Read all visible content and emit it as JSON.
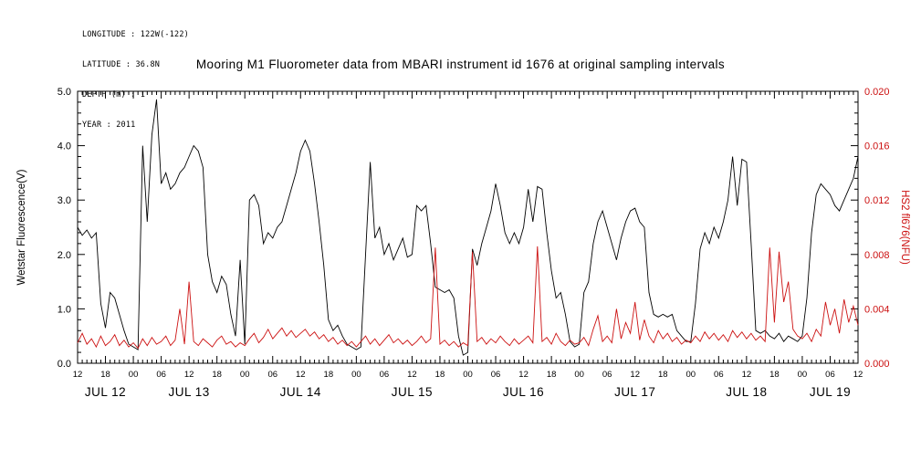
{
  "header": {
    "longitude": "LONGITUDE : 122W(-122)",
    "latitude": "LATITUDE : 36.8N",
    "depth": "DEPTH (m) : 1",
    "year": "YEAR : 2011"
  },
  "title": "Mooring M1 Fluorometer data from MBARI instrument id 1676 at original sampling intervals",
  "colors": {
    "axis": "#000000",
    "wetstar_series": "#000000",
    "hs2_series": "#cc1111"
  },
  "chart_data": {
    "type": "line",
    "title": "Mooring M1 Fluorometer data from MBARI instrument id 1676 at original sampling intervals",
    "x_unit": "hours since 2011 JUL 12 12:00",
    "x_range": {
      "start": 0,
      "step": 1,
      "count": 169,
      "min": 0,
      "max": 168
    },
    "left_axis": {
      "label": "Wetstar Fluorescence(V)",
      "min": 0.0,
      "max": 5.0,
      "tick_step": 1.0,
      "minor_step": 0.2,
      "ticks": [
        "0.0",
        "1.0",
        "2.0",
        "3.0",
        "4.0",
        "5.0"
      ],
      "color": "#000000"
    },
    "right_axis": {
      "label": "HS2 fl676(NFU)",
      "min": 0.0,
      "max": 0.02,
      "tick_step": 0.004,
      "minor_step": 0.001,
      "ticks": [
        "0.000",
        "0.004",
        "0.008",
        "0.012",
        "0.016",
        "0.020"
      ],
      "color": "#cc1111"
    },
    "x_axis": {
      "hour_tick_interval": 6,
      "minor_tick_interval": 1,
      "hour_labels": [
        "12",
        "18",
        "00",
        "06",
        "12",
        "18",
        "00",
        "06",
        "12",
        "18",
        "00",
        "06",
        "12",
        "18",
        "00",
        "06",
        "12",
        "18",
        "00",
        "06",
        "12",
        "18",
        "00",
        "06",
        "12",
        "18",
        "00",
        "06",
        "12"
      ],
      "day_labels": [
        "JUL 12",
        "JUL 13",
        "JUL 14",
        "JUL 15",
        "JUL 16",
        "JUL 17",
        "JUL 18",
        "JUL 19"
      ],
      "day_label_hours": [
        6,
        24,
        48,
        72,
        96,
        120,
        144,
        162
      ]
    },
    "grid": false,
    "legend": "none",
    "series": [
      {
        "name": "Wetstar Fluorescence(V)",
        "axis": "left",
        "color": "#000000",
        "values": [
          2.5,
          2.35,
          2.45,
          2.3,
          2.4,
          1.1,
          0.65,
          1.3,
          1.2,
          0.9,
          0.6,
          0.35,
          0.3,
          0.25,
          4.0,
          2.6,
          4.2,
          4.85,
          3.3,
          3.5,
          3.2,
          3.3,
          3.5,
          3.6,
          3.8,
          4.0,
          3.9,
          3.6,
          2.0,
          1.5,
          1.3,
          1.6,
          1.45,
          0.9,
          0.5,
          1.9,
          0.35,
          3.0,
          3.1,
          2.9,
          2.2,
          2.4,
          2.3,
          2.5,
          2.6,
          2.9,
          3.2,
          3.5,
          3.9,
          4.1,
          3.9,
          3.3,
          2.6,
          1.8,
          0.8,
          0.6,
          0.7,
          0.5,
          0.35,
          0.3,
          0.25,
          0.3,
          2.0,
          3.7,
          2.3,
          2.5,
          2.0,
          2.2,
          1.9,
          2.1,
          2.3,
          1.95,
          2.0,
          2.9,
          2.8,
          2.9,
          2.2,
          1.4,
          1.35,
          1.3,
          1.35,
          1.2,
          0.5,
          0.15,
          0.2,
          2.1,
          1.8,
          2.2,
          2.5,
          2.8,
          3.3,
          2.9,
          2.4,
          2.2,
          2.4,
          2.2,
          2.5,
          3.2,
          2.6,
          3.25,
          3.2,
          2.4,
          1.7,
          1.2,
          1.3,
          0.9,
          0.4,
          0.3,
          0.35,
          1.3,
          1.5,
          2.2,
          2.6,
          2.8,
          2.5,
          2.2,
          1.9,
          2.3,
          2.6,
          2.8,
          2.85,
          2.6,
          2.5,
          1.3,
          0.9,
          0.85,
          0.9,
          0.85,
          0.9,
          0.6,
          0.5,
          0.4,
          0.4,
          1.1,
          2.1,
          2.4,
          2.2,
          2.5,
          2.3,
          2.6,
          3.0,
          3.8,
          2.9,
          3.75,
          3.7,
          2.2,
          0.6,
          0.55,
          0.6,
          0.5,
          0.45,
          0.55,
          0.4,
          0.5,
          0.45,
          0.4,
          0.5,
          1.2,
          2.4,
          3.1,
          3.3,
          3.2,
          3.1,
          2.9,
          2.8,
          3.0,
          3.2,
          3.4,
          3.8
        ]
      },
      {
        "name": "HS2 fl676(NFU)",
        "axis": "right",
        "color": "#cc1111",
        "values": [
          0.0015,
          0.0022,
          0.0014,
          0.0018,
          0.0012,
          0.002,
          0.0013,
          0.0016,
          0.0021,
          0.0013,
          0.0017,
          0.0012,
          0.0015,
          0.0011,
          0.0018,
          0.0013,
          0.0019,
          0.0014,
          0.0016,
          0.002,
          0.0013,
          0.0017,
          0.004,
          0.0014,
          0.006,
          0.0016,
          0.0013,
          0.0018,
          0.0015,
          0.0012,
          0.0017,
          0.002,
          0.0014,
          0.0016,
          0.0012,
          0.0015,
          0.0013,
          0.0018,
          0.0022,
          0.0015,
          0.0019,
          0.0025,
          0.0018,
          0.0022,
          0.0026,
          0.002,
          0.0024,
          0.0019,
          0.0022,
          0.0025,
          0.002,
          0.0023,
          0.0018,
          0.0021,
          0.0016,
          0.0019,
          0.0014,
          0.0017,
          0.0013,
          0.0016,
          0.0012,
          0.0016,
          0.002,
          0.0014,
          0.0018,
          0.0013,
          0.0017,
          0.0021,
          0.0015,
          0.0018,
          0.0014,
          0.0017,
          0.0013,
          0.0016,
          0.002,
          0.0015,
          0.0018,
          0.0085,
          0.0014,
          0.0017,
          0.0013,
          0.0016,
          0.0012,
          0.0015,
          0.0013,
          0.0082,
          0.0016,
          0.0019,
          0.0014,
          0.0018,
          0.0015,
          0.002,
          0.0016,
          0.0013,
          0.0018,
          0.0014,
          0.0017,
          0.002,
          0.0015,
          0.0086,
          0.0016,
          0.0019,
          0.0014,
          0.0022,
          0.0016,
          0.0013,
          0.0017,
          0.0014,
          0.0015,
          0.0019,
          0.0013,
          0.0025,
          0.0035,
          0.0016,
          0.002,
          0.0015,
          0.004,
          0.0018,
          0.003,
          0.0022,
          0.0045,
          0.0017,
          0.0032,
          0.002,
          0.0015,
          0.0024,
          0.0018,
          0.0022,
          0.0016,
          0.0019,
          0.0014,
          0.0017,
          0.0015,
          0.002,
          0.0016,
          0.0023,
          0.0018,
          0.0022,
          0.0017,
          0.0021,
          0.0016,
          0.0024,
          0.0019,
          0.0023,
          0.0018,
          0.0022,
          0.0017,
          0.002,
          0.0016,
          0.0085,
          0.003,
          0.0082,
          0.0045,
          0.006,
          0.0025,
          0.002,
          0.0018,
          0.0022,
          0.0016,
          0.0025,
          0.002,
          0.0045,
          0.0028,
          0.004,
          0.0022,
          0.0047,
          0.003,
          0.0042,
          0.0028
        ]
      }
    ]
  }
}
